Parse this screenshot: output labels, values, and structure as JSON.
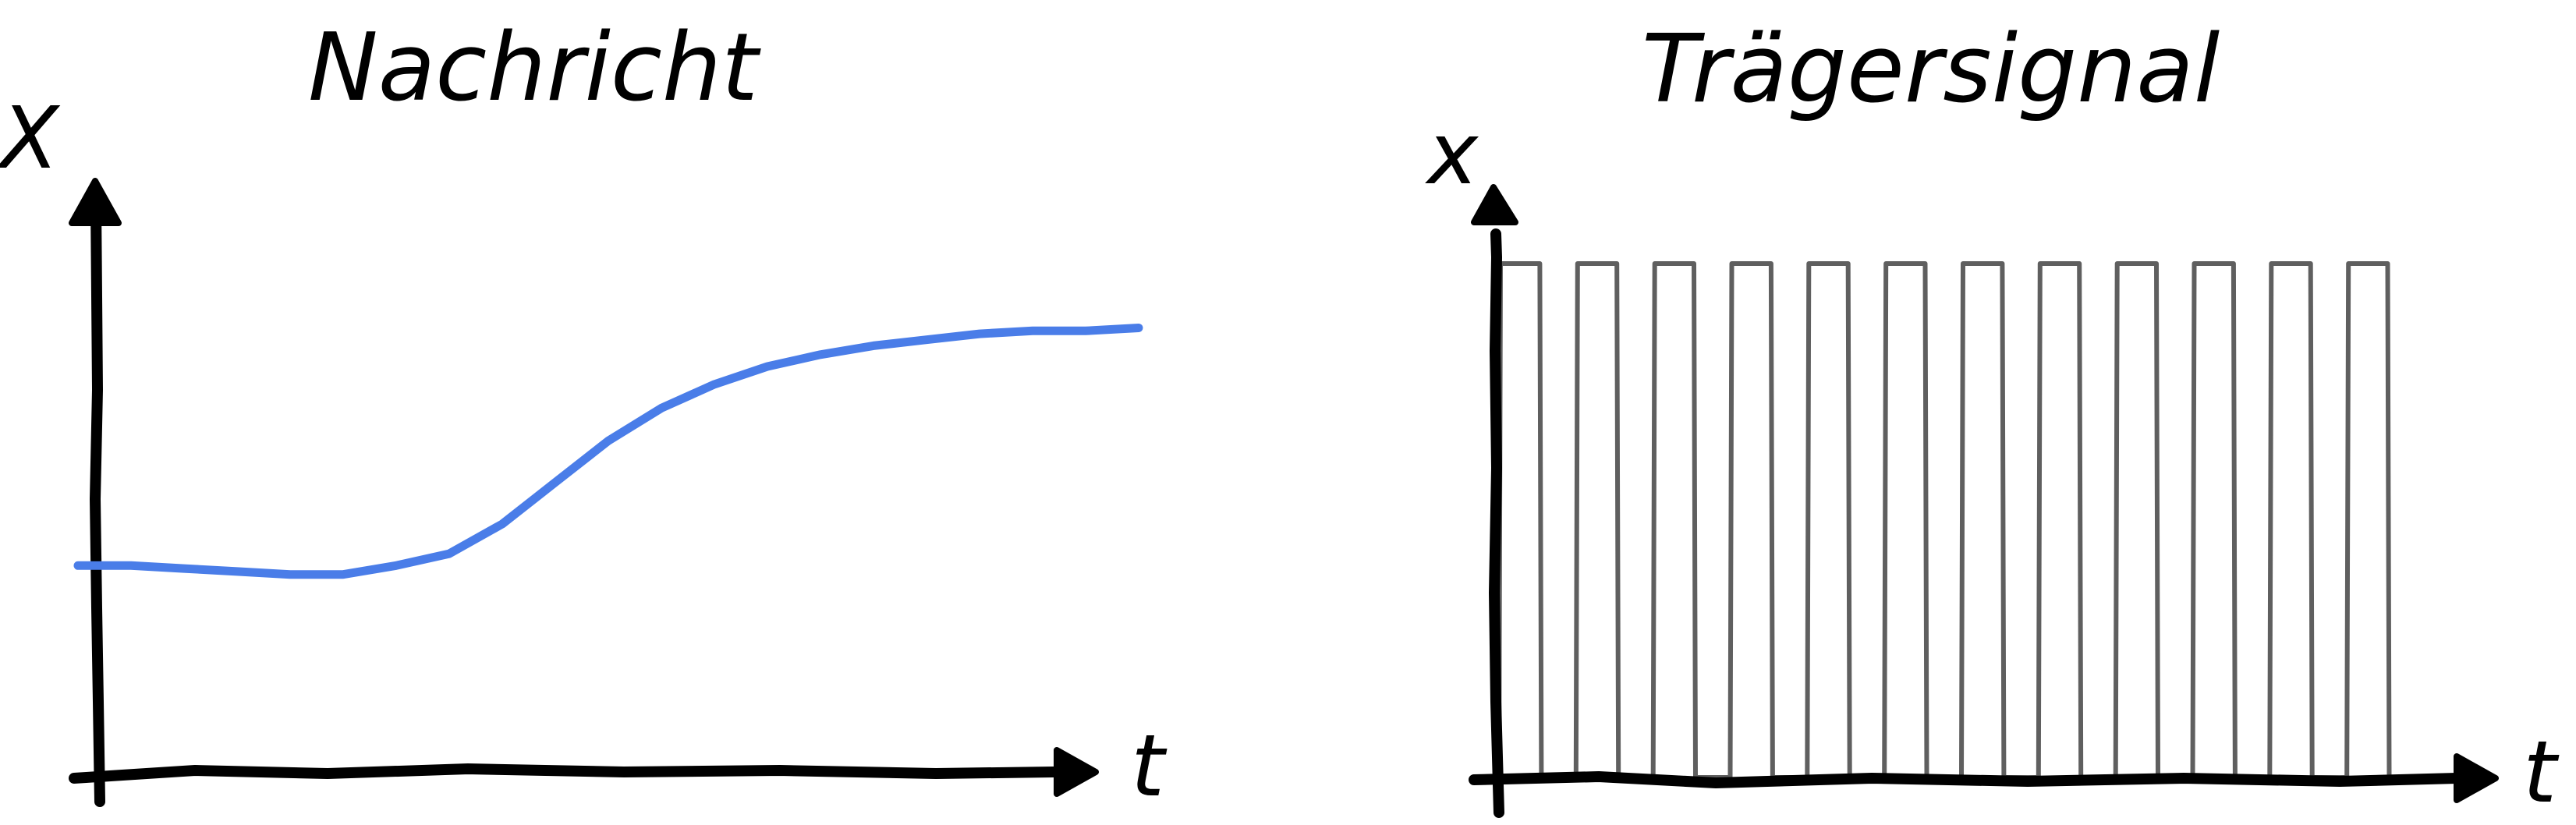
{
  "panels": {
    "left": {
      "title": "Nachricht",
      "y_axis_label": "X",
      "x_axis_label": "t"
    },
    "right": {
      "title": "Trägersignal",
      "y_axis_label": "x",
      "x_axis_label": "t"
    }
  },
  "colors": {
    "message": "#4a7de8",
    "carrier": "#5f5f5f",
    "axis": "#000000"
  },
  "chart_data": [
    {
      "type": "line",
      "title": "Nachricht",
      "xlabel": "t",
      "ylabel": "X",
      "grid": false,
      "series": [
        {
          "x": [
            0,
            0.05,
            0.1,
            0.15,
            0.2,
            0.25,
            0.3,
            0.35,
            0.4,
            0.45,
            0.5,
            0.55,
            0.6,
            0.65,
            0.7,
            0.75,
            0.8,
            0.85,
            0.9,
            0.95,
            1.0
          ],
          "y": [
            0.35,
            0.35,
            0.345,
            0.34,
            0.335,
            0.335,
            0.35,
            0.37,
            0.42,
            0.49,
            0.56,
            0.615,
            0.655,
            0.685,
            0.705,
            0.72,
            0.73,
            0.74,
            0.745,
            0.745,
            0.75
          ]
        }
      ]
    },
    {
      "type": "line",
      "title": "Trägersignal",
      "xlabel": "t",
      "ylabel": "x",
      "grid": false,
      "series": [
        {
          "pulses": 12,
          "duty_cycle": 0.55,
          "low": 0,
          "high": 1
        }
      ]
    }
  ]
}
